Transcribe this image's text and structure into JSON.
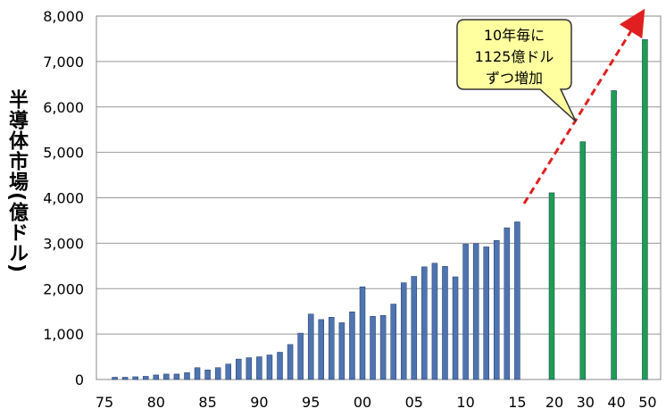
{
  "chart_data": {
    "type": "bar",
    "y_label": "半導体市場(億ドル)",
    "annotation": [
      "10年毎に",
      "1125億ドル",
      "ずつ増加"
    ],
    "categories": [
      "75",
      null,
      null,
      null,
      null,
      "80",
      null,
      null,
      null,
      null,
      "85",
      null,
      null,
      null,
      null,
      "90",
      null,
      null,
      null,
      null,
      "95",
      null,
      null,
      null,
      null,
      "00",
      null,
      null,
      null,
      null,
      "05",
      null,
      null,
      null,
      null,
      "10",
      null,
      null,
      null,
      null,
      "15",
      "20",
      "30",
      "40",
      "50"
    ],
    "series": [
      {
        "color": "#4f74b0",
        "values": [
          null,
          50,
          50,
          60,
          70,
          100,
          120,
          120,
          150,
          260,
          210,
          260,
          340,
          450,
          480,
          500,
          540,
          600,
          770,
          1020,
          1440,
          1320,
          1370,
          1250,
          1490,
          2040,
          1390,
          1410,
          1660,
          2130,
          2270,
          2480,
          2560,
          2490,
          2260,
          2980,
          2990,
          2920,
          3060,
          3340,
          3470,
          null,
          null,
          null,
          null
        ]
      },
      {
        "color": "#1e9e50",
        "values": [
          null,
          null,
          null,
          null,
          null,
          null,
          null,
          null,
          null,
          null,
          null,
          null,
          null,
          null,
          null,
          null,
          null,
          null,
          null,
          null,
          null,
          null,
          null,
          null,
          null,
          null,
          null,
          null,
          null,
          null,
          null,
          null,
          null,
          null,
          null,
          null,
          null,
          null,
          null,
          null,
          null,
          4110,
          5235,
          6360,
          7485
        ]
      }
    ],
    "ylim": [
      0,
      8000
    ],
    "yticks": [
      0,
      {
        "value": 1000,
        "label": "1,000"
      },
      {
        "value": 2000,
        "label": "2,000"
      },
      {
        "value": 3000,
        "label": "3,000"
      },
      {
        "value": 4000,
        "label": "4,000"
      },
      {
        "value": 5000,
        "label": "5,000"
      },
      {
        "value": 6000,
        "label": "6,000"
      },
      {
        "value": 7000,
        "label": "7,000"
      },
      {
        "value": 8000,
        "label": "8,000"
      }
    ],
    "grid": true
  }
}
